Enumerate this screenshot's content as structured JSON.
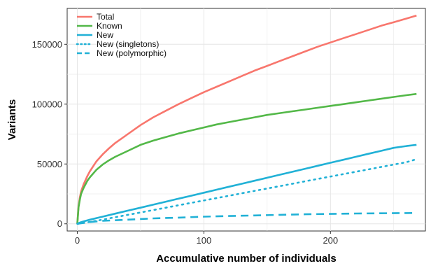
{
  "chart_data": {
    "type": "line",
    "title": "",
    "xlabel": "Accumulative  number of individuals",
    "ylabel": "Variants",
    "xlim": [
      -8,
      275
    ],
    "ylim": [
      -6000,
      180000
    ],
    "x_ticks": [
      0,
      100,
      200
    ],
    "y_ticks": [
      0,
      50000,
      100000,
      150000
    ],
    "x_tick_labels": [
      "0",
      "100",
      "200"
    ],
    "y_tick_labels": [
      "0",
      "50000",
      "100000",
      "150000"
    ],
    "grid": true,
    "legend_position": "top-left",
    "background": "#ffffff",
    "grid_color": "#e6e6e6",
    "series": [
      {
        "name": "Total",
        "color": "#f8766d",
        "dash": "solid",
        "x": [
          0,
          1,
          2,
          3,
          5,
          8,
          10,
          15,
          20,
          25,
          30,
          40,
          50,
          60,
          70,
          80,
          90,
          100,
          110,
          120,
          130,
          140,
          150,
          160,
          170,
          180,
          190,
          200,
          210,
          220,
          230,
          240,
          250,
          260,
          268
        ],
        "y": [
          0,
          15000,
          22000,
          27000,
          33000,
          40000,
          44000,
          52000,
          58000,
          63000,
          67500,
          75000,
          82500,
          89000,
          94500,
          100000,
          105000,
          110000,
          114500,
          119000,
          123500,
          128000,
          132000,
          136000,
          140000,
          144000,
          148000,
          151500,
          155000,
          158500,
          162000,
          165500,
          168500,
          171500,
          174000
        ]
      },
      {
        "name": "Known",
        "color": "#53b848",
        "dash": "solid",
        "x": [
          0,
          1,
          2,
          3,
          5,
          8,
          10,
          15,
          20,
          25,
          30,
          40,
          50,
          60,
          70,
          80,
          90,
          100,
          110,
          120,
          130,
          140,
          150,
          160,
          170,
          180,
          190,
          200,
          210,
          220,
          230,
          240,
          250,
          260,
          268
        ],
        "y": [
          0,
          14000,
          20000,
          25000,
          30000,
          36000,
          39000,
          45000,
          49500,
          53000,
          56000,
          61000,
          66000,
          69500,
          72500,
          75500,
          78000,
          80500,
          83000,
          85000,
          87000,
          89000,
          91000,
          92500,
          94000,
          95500,
          97000,
          98500,
          100000,
          101500,
          103000,
          104500,
          106000,
          107500,
          108500
        ]
      },
      {
        "name": "New",
        "color": "#21b1d6",
        "dash": "solid",
        "x": [
          0,
          2,
          5,
          10,
          20,
          30,
          40,
          50,
          60,
          70,
          80,
          90,
          100,
          110,
          120,
          130,
          140,
          150,
          160,
          170,
          180,
          190,
          200,
          210,
          220,
          230,
          240,
          250,
          260,
          268
        ],
        "y": [
          0,
          1000,
          2000,
          3500,
          6000,
          8500,
          11000,
          13500,
          16000,
          18500,
          21000,
          23500,
          26000,
          28500,
          31000,
          33500,
          36000,
          38500,
          41000,
          43500,
          46000,
          48500,
          51000,
          53500,
          56000,
          58500,
          61000,
          63500,
          65000,
          66000
        ]
      },
      {
        "name": "New (singletons)",
        "color": "#21b1d6",
        "dash": "dotted",
        "x": [
          0,
          5,
          10,
          20,
          30,
          40,
          50,
          60,
          70,
          80,
          90,
          100,
          110,
          120,
          130,
          140,
          150,
          160,
          170,
          180,
          190,
          200,
          210,
          220,
          230,
          240,
          250,
          260,
          268
        ],
        "y": [
          0,
          800,
          1600,
          3500,
          5500,
          7500,
          9500,
          11500,
          13500,
          15500,
          17500,
          19500,
          21500,
          23500,
          25500,
          27500,
          29500,
          31500,
          33500,
          35500,
          37500,
          39500,
          41500,
          43500,
          45500,
          47500,
          49500,
          51500,
          54000
        ]
      },
      {
        "name": "New (polymorphic)",
        "color": "#21b1d6",
        "dash": "dashed",
        "x": [
          0,
          10,
          20,
          40,
          60,
          80,
          100,
          120,
          140,
          160,
          180,
          200,
          220,
          240,
          260,
          268
        ],
        "y": [
          0,
          1500,
          2500,
          3500,
          4500,
          5200,
          6000,
          6500,
          7000,
          7500,
          8000,
          8300,
          8600,
          8800,
          9000,
          9100
        ]
      }
    ]
  }
}
